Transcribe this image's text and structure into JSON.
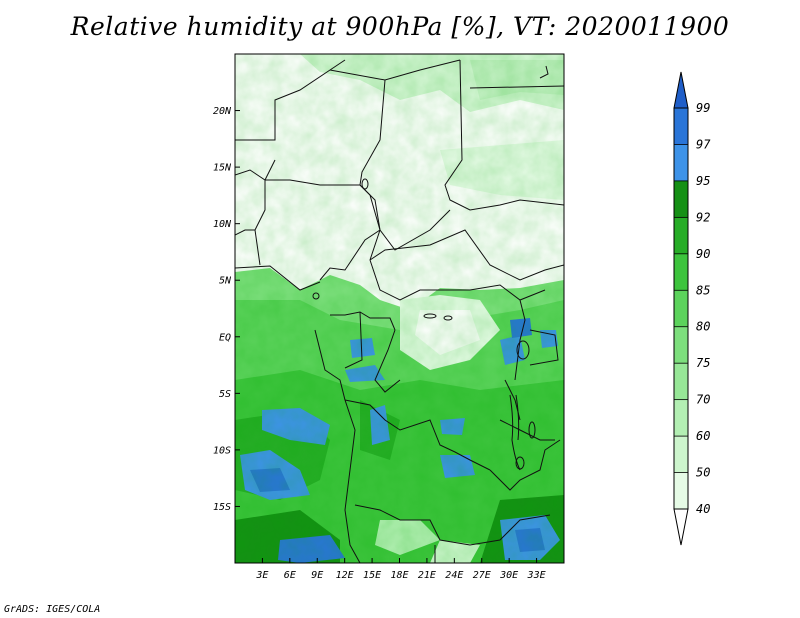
{
  "title": "Relative humidity at 900hPa [%], VT: 2020011900",
  "credit": "GrADS: IGES/COLA",
  "map": {
    "lon_range": [
      0,
      36
    ],
    "lat_range": [
      -20,
      25
    ],
    "lon_ticks": [
      "3E",
      "6E",
      "9E",
      "12E",
      "15E",
      "18E",
      "21E",
      "24E",
      "27E",
      "30E",
      "33E"
    ],
    "lat_ticks": [
      "20N",
      "15N",
      "10N",
      "5N",
      "EQ",
      "5S",
      "10S",
      "15S"
    ]
  },
  "colorbar": {
    "labels": [
      "40",
      "50",
      "60",
      "70",
      "75",
      "80",
      "85",
      "90",
      "92",
      "95",
      "97",
      "99"
    ],
    "colors": [
      "#ffffff",
      "#e6fbe6",
      "#cdf5cd",
      "#b3efb3",
      "#97e797",
      "#7ddf7d",
      "#5cd35c",
      "#3dc43d",
      "#27ad27",
      "#159015",
      "#3e93e8",
      "#2a75d8",
      "#1f5ec8"
    ]
  }
}
